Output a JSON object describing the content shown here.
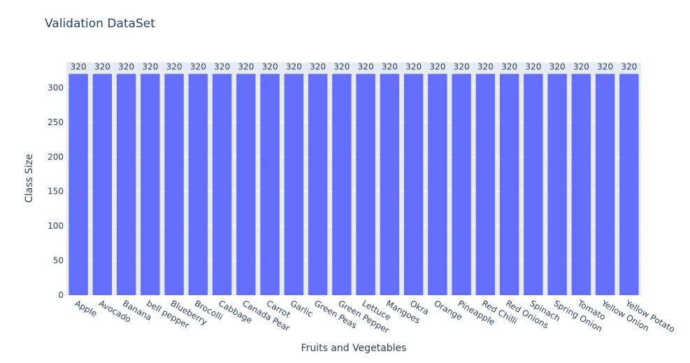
{
  "chart_data": {
    "type": "bar",
    "title": "Validation DataSet",
    "xlabel": "Fruits and Vegetables",
    "ylabel": "Class Size",
    "categories": [
      "Apple",
      "Avocado",
      "Banana",
      "bell pepper",
      "Blueberry",
      "Brocolli",
      "Cabbage",
      "Canada Pear",
      "Carrot",
      "Garlic",
      "Green Peas",
      "Green Pepper",
      "Lettuce",
      "Mangoes",
      "Okra",
      "Orange",
      "Pineapple",
      "Red Chilli",
      "Red Onions",
      "Spinach",
      "Spring Onion",
      "Tomato",
      "Yellow Onion",
      "Yellow Potato"
    ],
    "values": [
      320,
      320,
      320,
      320,
      320,
      320,
      320,
      320,
      320,
      320,
      320,
      320,
      320,
      320,
      320,
      320,
      320,
      320,
      320,
      320,
      320,
      320,
      320,
      320
    ],
    "data_labels": [
      "320",
      "320",
      "320",
      "320",
      "320",
      "320",
      "320",
      "320",
      "320",
      "320",
      "320",
      "320",
      "320",
      "320",
      "320",
      "320",
      "320",
      "320",
      "320",
      "320",
      "320",
      "320",
      "320",
      "320"
    ],
    "ylim": [
      0,
      336.8
    ],
    "yticks": [
      0,
      50,
      100,
      150,
      200,
      250,
      300
    ],
    "grid": true,
    "bar_color": "#636efa",
    "plot_bgcolor": "#e5ecf6",
    "text_color": "#2a3f5f"
  }
}
